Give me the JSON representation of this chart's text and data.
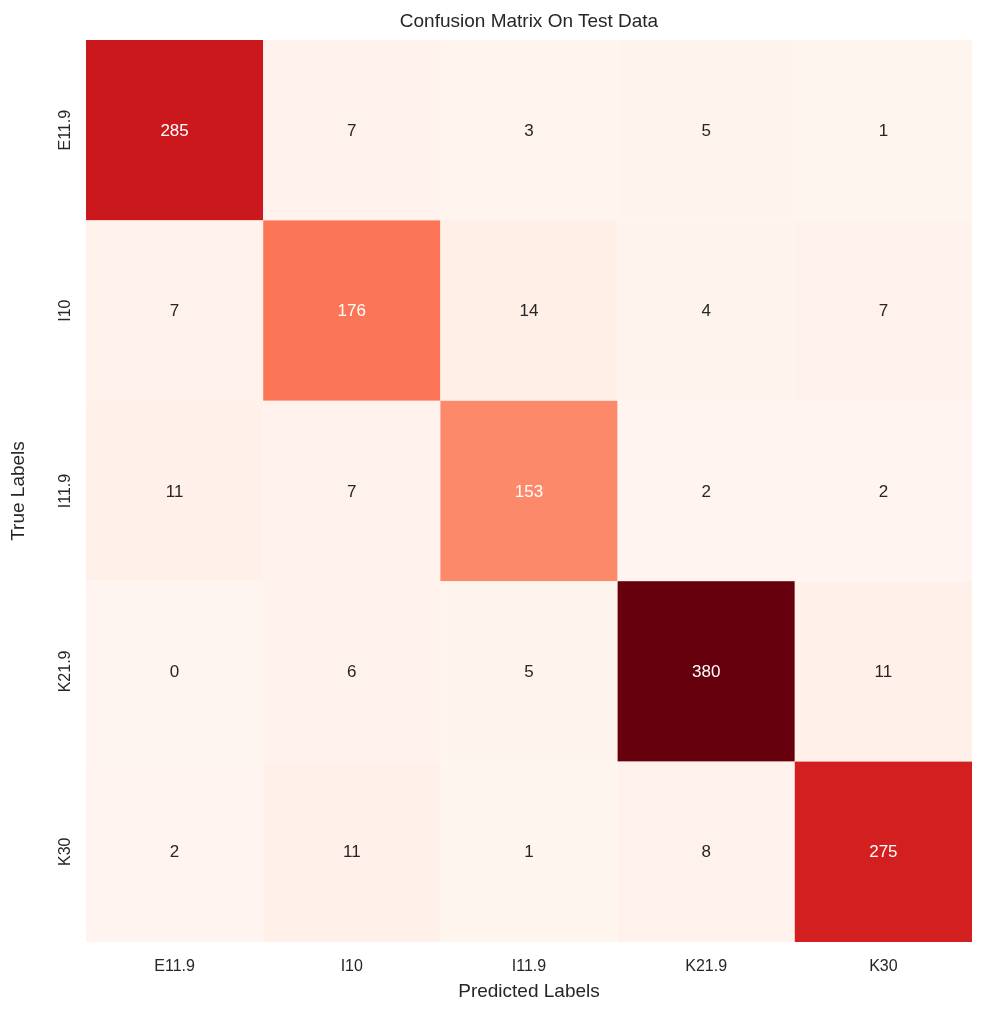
{
  "chart_data": {
    "type": "heatmap",
    "title": "Confusion Matrix On Test Data",
    "xlabel": "Predicted Labels",
    "ylabel": "True Labels",
    "categories": [
      "E11.9",
      "I10",
      "I11.9",
      "K21.9",
      "K30"
    ],
    "y_categories": [
      "E11.9",
      "I10",
      "I11.9",
      "K21.9",
      "K30"
    ],
    "cells": [
      [
        285,
        7,
        3,
        5,
        1
      ],
      [
        7,
        176,
        14,
        4,
        7
      ],
      [
        11,
        7,
        153,
        2,
        2
      ],
      [
        0,
        6,
        5,
        380,
        11
      ],
      [
        2,
        11,
        1,
        8,
        275
      ]
    ],
    "data_labels": true
  }
}
